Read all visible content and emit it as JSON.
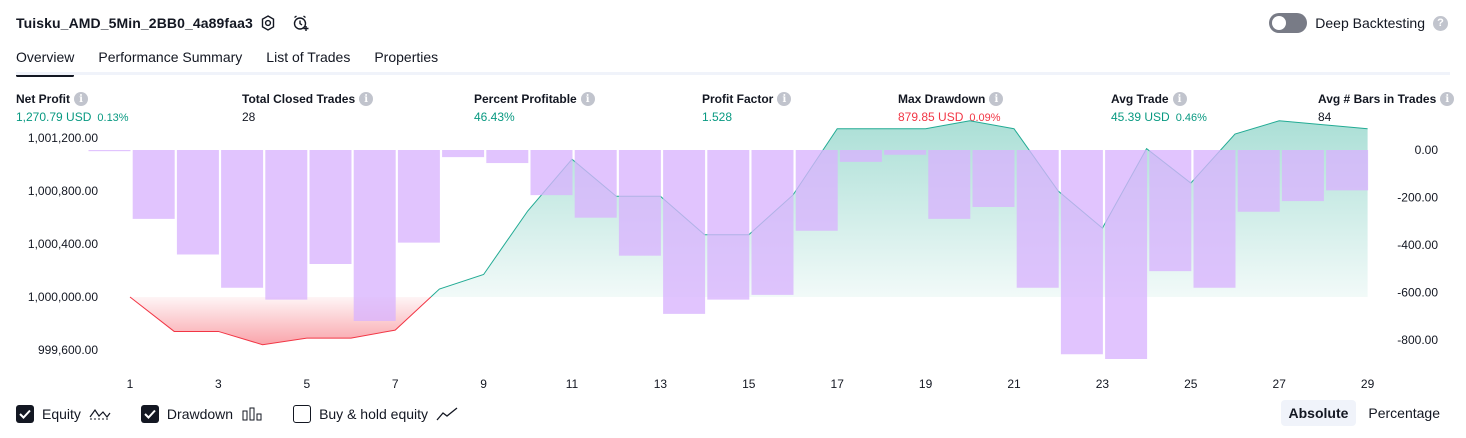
{
  "header": {
    "title": "Tuisku_AMD_5Min_2BB0_4a89faa3",
    "deep_backtesting_label": "Deep Backtesting",
    "deep_backtesting_enabled": false,
    "help_glyph": "?"
  },
  "tabs": [
    {
      "label": "Overview",
      "active": true
    },
    {
      "label": "Performance Summary",
      "active": false
    },
    {
      "label": "List of Trades",
      "active": false
    },
    {
      "label": "Properties",
      "active": false
    }
  ],
  "metrics": {
    "info_glyph": "i",
    "net_profit": {
      "label": "Net Profit",
      "value": "1,270.79 USD",
      "sub": "0.13%"
    },
    "total_closed_trades": {
      "label": "Total Closed Trades",
      "value": "28"
    },
    "percent_profitable": {
      "label": "Percent Profitable",
      "value": "46.43%"
    },
    "profit_factor": {
      "label": "Profit Factor",
      "value": "1.528"
    },
    "max_drawdown": {
      "label": "Max Drawdown",
      "value": "879.85 USD",
      "sub": "0.09%"
    },
    "avg_trade": {
      "label": "Avg Trade",
      "value": "45.39 USD",
      "sub": "0.46%"
    },
    "avg_bars": {
      "label": "Avg # Bars in Trades",
      "value": "84"
    }
  },
  "colors": {
    "positive": "#089981",
    "negative": "#f23645",
    "equity_line": "#22ab94",
    "drawdown_bar": "#d8b4fe"
  },
  "chart_data": {
    "type": "area",
    "x": [
      1,
      2,
      3,
      4,
      5,
      6,
      7,
      8,
      9,
      10,
      11,
      12,
      13,
      14,
      15,
      16,
      17,
      18,
      19,
      20,
      21,
      22,
      23,
      24,
      25,
      26,
      27,
      28,
      29
    ],
    "x_tick_labels": [
      "1",
      "3",
      "5",
      "7",
      "9",
      "11",
      "13",
      "15",
      "17",
      "19",
      "21",
      "23",
      "25",
      "27",
      "29"
    ],
    "left_axis": {
      "ticks": [
        "1,001,200.00",
        "1,000,800.00",
        "1,000,400.00",
        "1,000,000.00",
        "999,600.00"
      ],
      "range": [
        999500,
        1001400
      ],
      "baseline": 1000000
    },
    "right_axis": {
      "ticks": [
        "0.00",
        "-200.00",
        "-400.00",
        "-600.00",
        "-800.00"
      ],
      "range": [
        -880,
        0
      ]
    },
    "series": [
      {
        "axis": "left",
        "values": [
          1000000,
          999740,
          999740,
          999640,
          999690,
          999690,
          999750,
          1000060,
          1000170,
          1000650,
          1001040,
          1000760,
          1000760,
          1000470,
          1000470,
          1000770,
          1001270,
          1001270,
          1001270,
          1001330,
          1001270,
          1000800,
          1000520,
          1001120,
          1000860,
          1001230,
          1001330,
          1001300,
          1001270
        ]
      },
      {
        "axis": "right",
        "values": [
          -5,
          -290,
          -440,
          -580,
          -630,
          -480,
          -720,
          -390,
          -30,
          -55,
          -190,
          -285,
          -445,
          -690,
          -630,
          -610,
          -340,
          -50,
          -20,
          -290,
          -240,
          -580,
          -860,
          -880,
          -510,
          -580,
          -260,
          -215,
          -170
        ]
      }
    ]
  },
  "bottom": {
    "equity": {
      "label": "Equity",
      "checked": true
    },
    "drawdown": {
      "label": "Drawdown",
      "checked": true
    },
    "buy_hold": {
      "label": "Buy & hold equity",
      "checked": false
    },
    "absolute_label": "Absolute",
    "percentage_label": "Percentage",
    "mode": "absolute"
  }
}
